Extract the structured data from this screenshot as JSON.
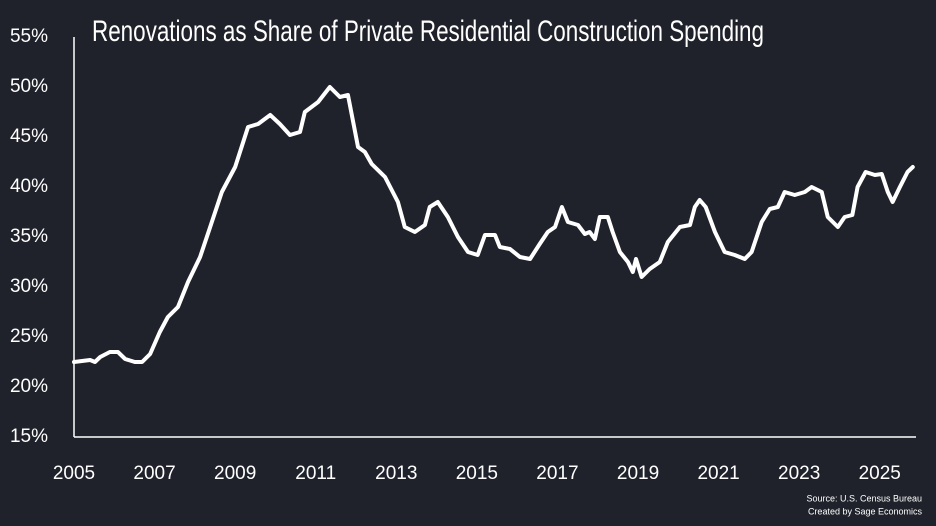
{
  "chart_data": {
    "type": "line",
    "title": "Renovations as Share of Private Residential Construction Spending",
    "source": "Source: U.S. Census Bureau",
    "credit": "Created by Sage Economics",
    "xlim": [
      2005,
      2025.9
    ],
    "xticks": [
      2005,
      2007,
      2009,
      2011,
      2013,
      2015,
      2017,
      2019,
      2021,
      2023,
      2025
    ],
    "ylim": [
      15,
      55
    ],
    "yticks": [
      {
        "value": 15,
        "label": "15%"
      },
      {
        "value": 20,
        "label": "20%"
      },
      {
        "value": 25,
        "label": "25%"
      },
      {
        "value": 30,
        "label": "30%"
      },
      {
        "value": 35,
        "label": "35%"
      },
      {
        "value": 40,
        "label": "40%"
      },
      {
        "value": 45,
        "label": "45%"
      },
      {
        "value": 50,
        "label": "50%"
      },
      {
        "value": 55,
        "label": "55%"
      }
    ],
    "grid": false,
    "x": [
      2005.0,
      2005.4,
      2005.52,
      2005.65,
      2005.89,
      2006.09,
      2006.27,
      2006.51,
      2006.69,
      2006.89,
      2007.13,
      2007.33,
      2007.58,
      2007.83,
      2008.13,
      2008.38,
      2008.67,
      2009.0,
      2009.32,
      2009.57,
      2009.87,
      2010.11,
      2010.36,
      2010.61,
      2010.73,
      2011.06,
      2011.35,
      2011.6,
      2011.8,
      2012.05,
      2012.22,
      2012.39,
      2012.72,
      2013.04,
      2013.21,
      2013.46,
      2013.71,
      2013.83,
      2014.03,
      2014.28,
      2014.53,
      2014.78,
      2015.02,
      2015.2,
      2015.45,
      2015.57,
      2015.82,
      2016.07,
      2016.32,
      2016.56,
      2016.76,
      2016.94,
      2017.11,
      2017.26,
      2017.51,
      2017.68,
      2017.8,
      2017.93,
      2018.05,
      2018.25,
      2018.37,
      2018.55,
      2018.75,
      2018.87,
      2018.95,
      2019.09,
      2019.29,
      2019.54,
      2019.74,
      2020.04,
      2020.29,
      2020.41,
      2020.53,
      2020.68,
      2020.91,
      2021.15,
      2021.4,
      2021.65,
      2021.82,
      2022.07,
      2022.27,
      2022.47,
      2022.64,
      2022.89,
      2023.14,
      2023.31,
      2023.56,
      2023.71,
      2023.96,
      2024.13,
      2024.32,
      2024.45,
      2024.65,
      2024.88,
      2025.05,
      2025.2,
      2025.32,
      2025.5,
      2025.69,
      2025.82
    ],
    "series": [
      {
        "name": "Renovations share",
        "color": "#ffffff",
        "values": [
          22.5,
          22.7,
          22.5,
          23,
          23.5,
          23.5,
          22.8,
          22.5,
          22.5,
          23.3,
          25.5,
          27,
          28,
          30.5,
          33,
          36,
          39.5,
          42,
          46,
          46.3,
          47.2,
          46.3,
          45.2,
          45.5,
          47.5,
          48.5,
          50,
          49,
          49.2,
          44,
          43.5,
          42.3,
          41,
          38.5,
          36,
          35.5,
          36.2,
          38,
          38.5,
          37,
          35,
          33.5,
          33.2,
          35.2,
          35.2,
          34,
          33.8,
          33,
          32.8,
          34.3,
          35.5,
          36,
          38,
          36.5,
          36.2,
          35.3,
          35.5,
          34.8,
          37,
          37,
          35.5,
          33.5,
          32.5,
          31.5,
          32.8,
          31,
          31.8,
          32.5,
          34.5,
          36,
          36.2,
          38,
          38.7,
          38,
          35.5,
          33.5,
          33.2,
          32.8,
          33.5,
          36.5,
          37.8,
          38,
          39.5,
          39.2,
          39.5,
          40,
          39.5,
          37,
          36,
          37,
          37.2,
          40,
          41.5,
          41.2,
          41.3,
          39.5,
          38.5,
          40,
          41.5,
          42
        ]
      }
    ]
  }
}
